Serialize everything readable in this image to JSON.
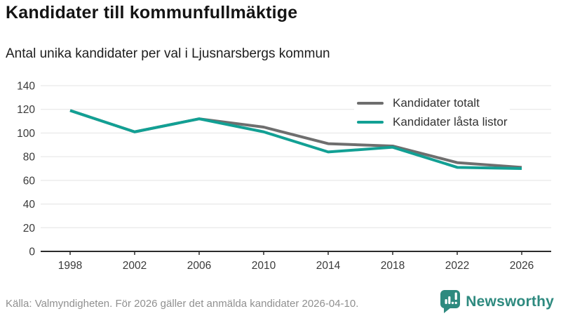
{
  "header": {
    "title": "Kandidater till kommunfullmäktige",
    "subtitle": "Antal unika kandidater per val i Ljusnarsbergs kommun"
  },
  "chart_data": {
    "type": "line",
    "x": [
      1998,
      2002,
      2006,
      2010,
      2014,
      2018,
      2022,
      2026
    ],
    "series": [
      {
        "name": "Kandidater totalt",
        "color": "#6e6e6e",
        "values": [
          119,
          101,
          112,
          105,
          91,
          89,
          75,
          71
        ]
      },
      {
        "name": "Kandidater låsta listor",
        "color": "#12a094",
        "values": [
          119,
          101,
          112,
          101,
          84,
          88,
          71,
          70
        ]
      }
    ],
    "ylim": [
      0,
      140
    ],
    "yticks": [
      0,
      20,
      40,
      60,
      80,
      100,
      120,
      140
    ],
    "grid": true,
    "legend_position": "top-right",
    "colors": {
      "gridline": "#e3e3e3",
      "axis": "#2b2b2b",
      "tick_label": "#3a3a3a"
    }
  },
  "footer": {
    "source": "Källa: Valmyndigheten. För 2026 gäller det anmälda kandidater 2026-04-10.",
    "brand": "Newsworthy",
    "brand_color": "#2e8a7f"
  }
}
